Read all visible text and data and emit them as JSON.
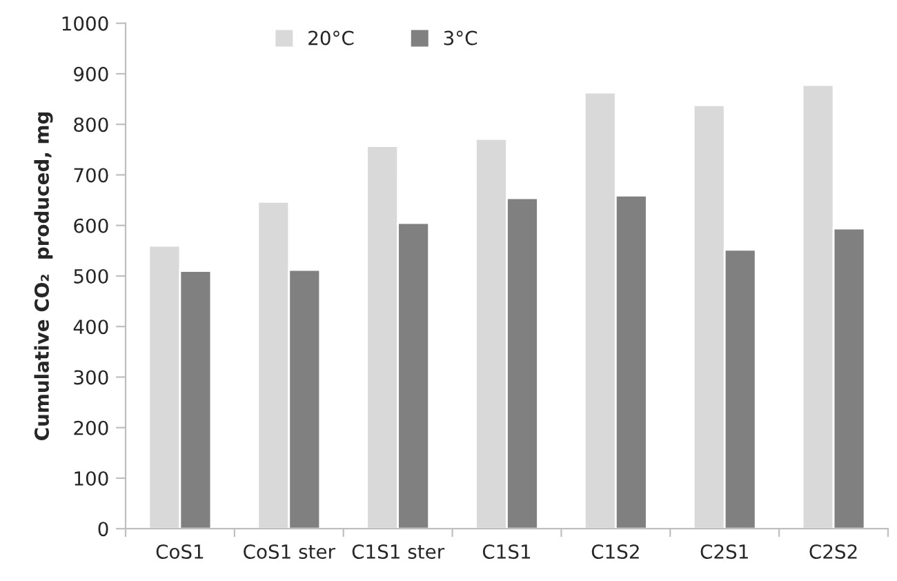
{
  "chart_data": {
    "type": "bar",
    "ylabel": "Cumulative CO₂  produced, mg",
    "categories": [
      "CoS1",
      "CoS1 ster",
      "C1S1 ster",
      "C1S1",
      "C1S2",
      "C2S1",
      "C2S2"
    ],
    "series": [
      {
        "name": "20°C",
        "color": "#d9d9d9",
        "values": [
          560,
          647,
          757,
          771,
          863,
          838,
          878
        ]
      },
      {
        "name": "3°C",
        "color": "#808080",
        "values": [
          510,
          512,
          605,
          654,
          659,
          552,
          594
        ]
      }
    ],
    "ylim": [
      0,
      1000
    ],
    "yticks": [
      0,
      100,
      200,
      300,
      400,
      500,
      600,
      700,
      800,
      900,
      1000
    ],
    "grid": false,
    "legend": "top"
  }
}
